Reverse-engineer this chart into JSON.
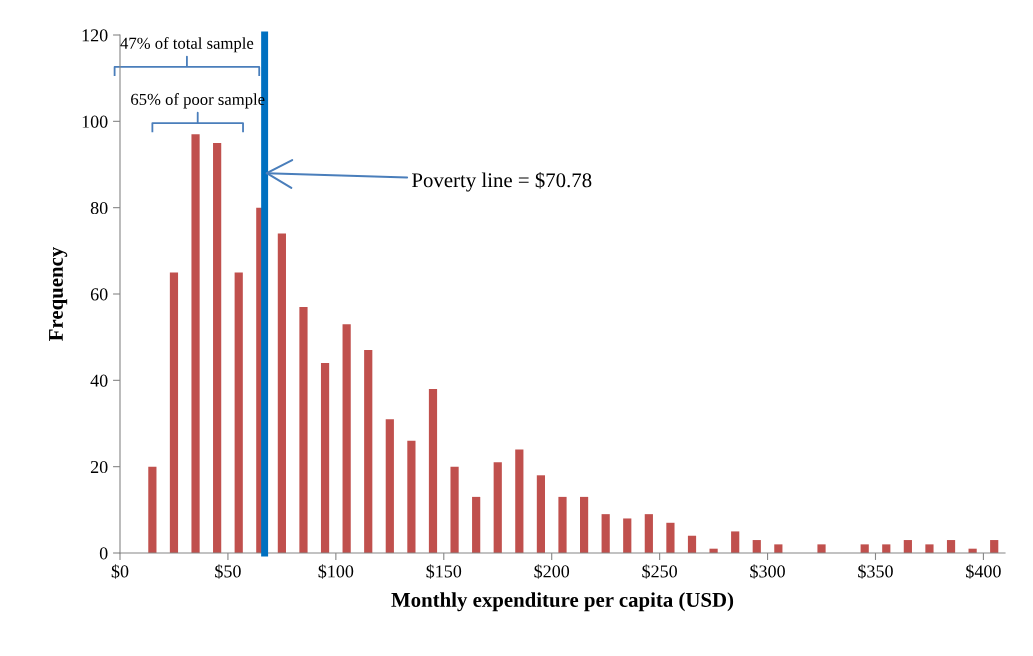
{
  "chart_data": {
    "type": "bar",
    "xlabel": "Monthly expenditure per capita (USD)",
    "ylabel": "Frequency",
    "x": [
      15,
      25,
      35,
      45,
      55,
      65,
      75,
      85,
      95,
      105,
      115,
      125,
      135,
      145,
      155,
      165,
      175,
      185,
      195,
      205,
      215,
      225,
      235,
      245,
      255,
      265,
      275,
      285,
      295,
      305,
      315,
      325,
      335,
      345,
      355,
      365,
      375,
      385,
      395,
      405
    ],
    "values": [
      20,
      65,
      97,
      95,
      65,
      80,
      74,
      57,
      44,
      53,
      47,
      31,
      26,
      38,
      20,
      13,
      21,
      24,
      18,
      13,
      13,
      9,
      8,
      9,
      7,
      4,
      1,
      5,
      3,
      2,
      0,
      2,
      0,
      2,
      2,
      3,
      2,
      3,
      1,
      3
    ],
    "color": "#c0504d",
    "xlim": [
      0,
      410
    ],
    "xticks": [
      {
        "value": 0,
        "label": "$0"
      },
      {
        "value": 50,
        "label": "$50"
      },
      {
        "value": 100,
        "label": "$100"
      },
      {
        "value": 150,
        "label": "$150"
      },
      {
        "value": 200,
        "label": "$200"
      },
      {
        "value": 250,
        "label": "$250"
      },
      {
        "value": 300,
        "label": "$300"
      },
      {
        "value": 350,
        "label": "$350"
      },
      {
        "value": 400,
        "label": "$400"
      }
    ],
    "ylim": [
      0,
      120
    ],
    "yticks": [
      0,
      20,
      40,
      60,
      80,
      100,
      120
    ],
    "grid": false,
    "ref_lines": [
      {
        "axis": "x",
        "value": 67,
        "color": "#0070c0"
      }
    ],
    "annotations": [
      {
        "text": "Poverty line = $70.78",
        "x": 67,
        "y": 88
      },
      "47% of total sample",
      "65% of poor sample"
    ]
  }
}
